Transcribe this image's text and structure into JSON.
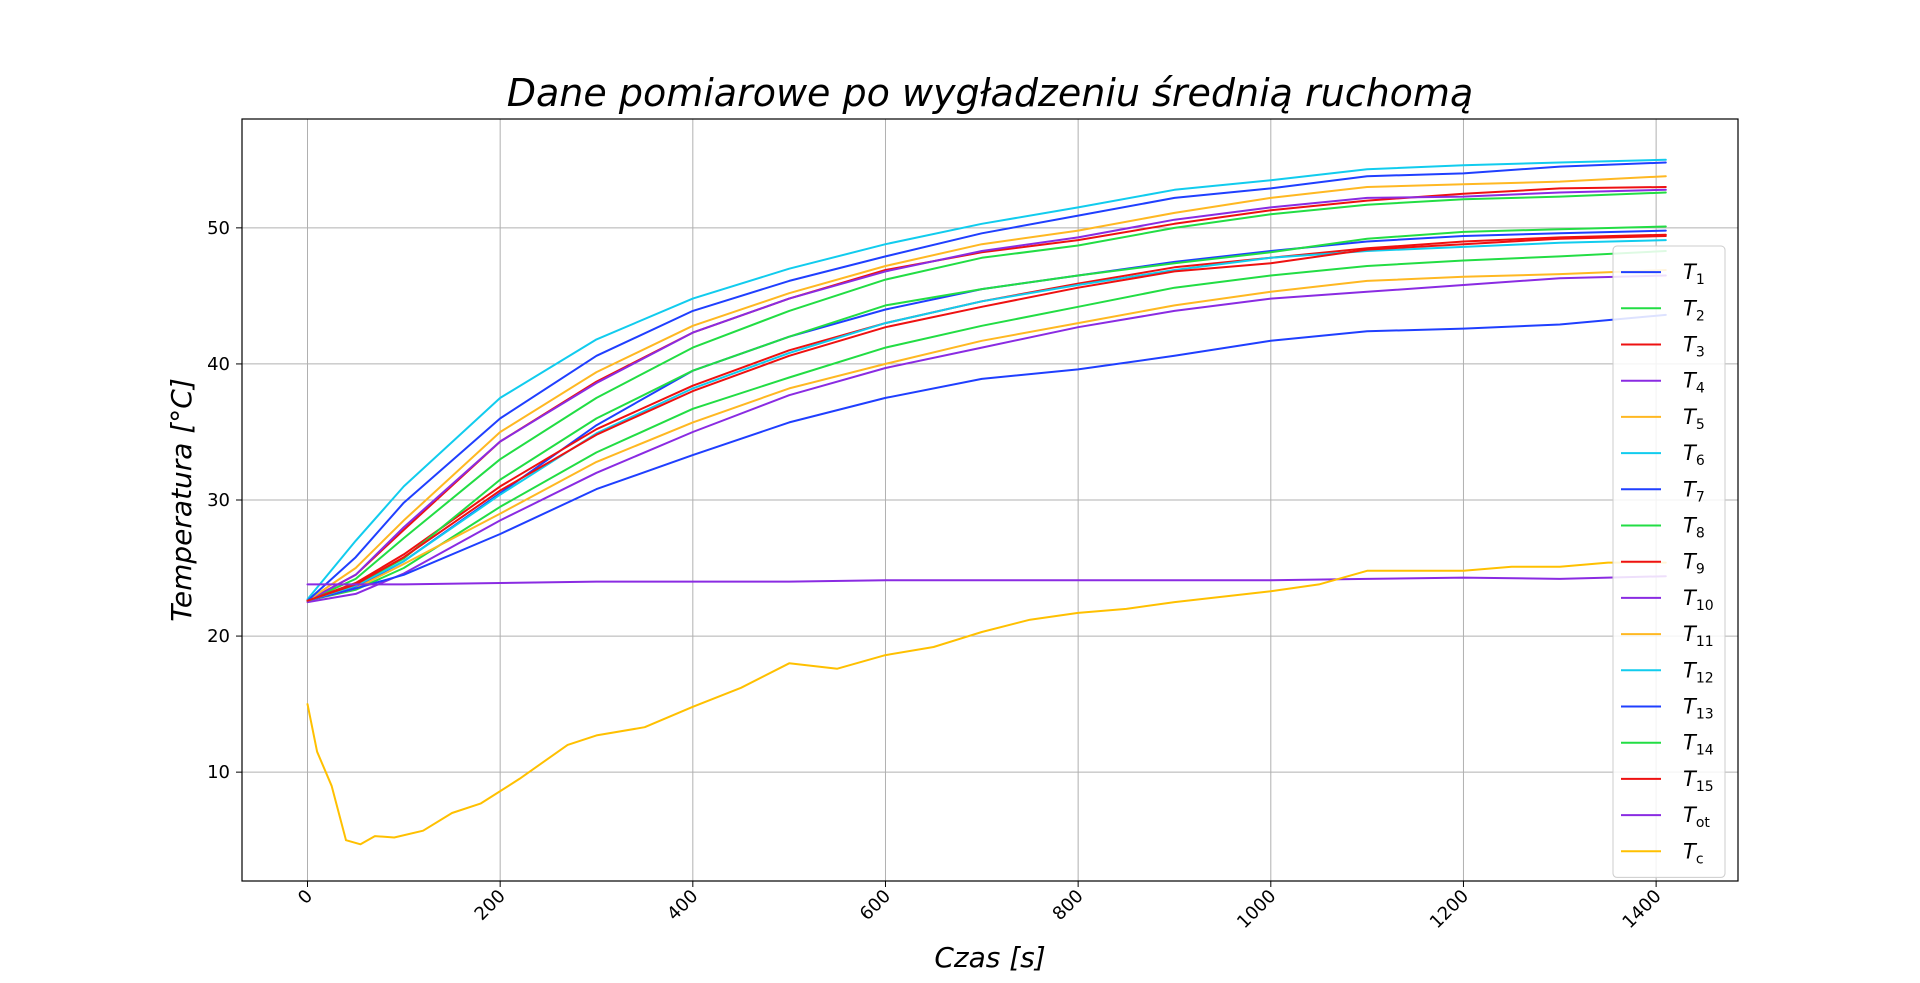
{
  "chart_data": {
    "type": "line",
    "title": "Dane pomiarowe po wygładzeniu średnią ruchomą",
    "xlabel": "Czas [s]",
    "ylabel": "Temperatura [°C]",
    "xlim": [
      -68,
      1485
    ],
    "ylim": [
      2,
      58
    ],
    "xticks": [
      0,
      200,
      400,
      600,
      800,
      1000,
      1200,
      1400
    ],
    "xtick_labels": [
      "0",
      "200",
      "400",
      "600",
      "800",
      "1000",
      "1200",
      "1400"
    ],
    "xtick_rotation": -45,
    "yticks": [
      10,
      20,
      30,
      40,
      50
    ],
    "ytick_labels": [
      "10",
      "20",
      "30",
      "40",
      "50"
    ],
    "grid": true,
    "legend_position": "right",
    "series": [
      {
        "name": "T",
        "sub": "1",
        "color": "#1f3fff",
        "x": [
          0,
          50,
          100,
          200,
          300,
          400,
          500,
          600,
          700,
          800,
          900,
          1000,
          1100,
          1200,
          1300,
          1410
        ],
        "y": [
          22.6,
          23.6,
          25.5,
          30.5,
          35.5,
          39.5,
          42.0,
          44.0,
          45.5,
          46.5,
          47.5,
          48.3,
          49.0,
          49.4,
          49.6,
          49.8
        ]
      },
      {
        "name": "T",
        "sub": "2",
        "color": "#22dd44",
        "x": [
          0,
          50,
          100,
          200,
          300,
          400,
          500,
          600,
          700,
          800,
          900,
          1000,
          1100,
          1200,
          1300,
          1410
        ],
        "y": [
          22.6,
          23.4,
          25.0,
          29.5,
          33.5,
          36.7,
          39.0,
          41.2,
          42.8,
          44.2,
          45.6,
          46.5,
          47.2,
          47.6,
          47.9,
          48.3
        ]
      },
      {
        "name": "T",
        "sub": "3",
        "color": "#ee1111",
        "x": [
          0,
          50,
          100,
          200,
          300,
          400,
          500,
          600,
          700,
          800,
          900,
          1000,
          1100,
          1200,
          1300,
          1410
        ],
        "y": [
          22.6,
          24.5,
          27.8,
          34.3,
          38.7,
          42.3,
          44.8,
          46.9,
          48.2,
          49.1,
          50.3,
          51.3,
          52.0,
          52.5,
          52.9,
          53.0
        ]
      },
      {
        "name": "T",
        "sub": "4",
        "color": "#8a2be2",
        "x": [
          0,
          50,
          100,
          200,
          300,
          400,
          500,
          600,
          700,
          800,
          900,
          1000,
          1100,
          1200,
          1300,
          1410
        ],
        "y": [
          22.5,
          23.1,
          24.6,
          28.5,
          32.0,
          35.0,
          37.7,
          39.7,
          41.2,
          42.7,
          43.9,
          44.8,
          45.3,
          45.8,
          46.3,
          46.5
        ]
      },
      {
        "name": "T",
        "sub": "5",
        "color": "#ffb822",
        "x": [
          0,
          50,
          100,
          200,
          300,
          400,
          500,
          600,
          700,
          800,
          900,
          1000,
          1100,
          1200,
          1300,
          1410
        ],
        "y": [
          22.6,
          23.5,
          25.3,
          29.0,
          32.8,
          35.7,
          38.2,
          40.0,
          41.7,
          43.0,
          44.3,
          45.3,
          46.1,
          46.4,
          46.6,
          46.9
        ]
      },
      {
        "name": "T",
        "sub": "6",
        "color": "#11ccee",
        "x": [
          0,
          50,
          100,
          200,
          300,
          400,
          500,
          600,
          700,
          800,
          900,
          1000,
          1100,
          1200,
          1300,
          1410
        ],
        "y": [
          22.7,
          27.0,
          31.0,
          37.5,
          41.8,
          44.8,
          47.0,
          48.8,
          50.3,
          51.5,
          52.8,
          53.5,
          54.3,
          54.6,
          54.8,
          55.0
        ]
      },
      {
        "name": "T",
        "sub": "7",
        "color": "#1f3fff",
        "x": [
          0,
          50,
          100,
          200,
          300,
          400,
          500,
          600,
          700,
          800,
          900,
          1000,
          1100,
          1200,
          1300,
          1410
        ],
        "y": [
          22.6,
          23.5,
          24.5,
          27.5,
          30.8,
          33.3,
          35.7,
          37.5,
          38.9,
          39.6,
          40.6,
          41.7,
          42.4,
          42.6,
          42.9,
          43.6
        ]
      },
      {
        "name": "T",
        "sub": "8",
        "color": "#22dd44",
        "x": [
          0,
          50,
          100,
          200,
          300,
          400,
          500,
          600,
          700,
          800,
          900,
          1000,
          1100,
          1200,
          1300,
          1410
        ],
        "y": [
          22.6,
          24.2,
          27.2,
          33.0,
          37.5,
          41.2,
          43.9,
          46.2,
          47.8,
          48.7,
          50.0,
          51.0,
          51.7,
          52.1,
          52.3,
          52.6
        ]
      },
      {
        "name": "T",
        "sub": "9",
        "color": "#ee1111",
        "x": [
          0,
          50,
          100,
          200,
          300,
          400,
          500,
          600,
          700,
          800,
          900,
          1000,
          1100,
          1200,
          1300,
          1410
        ],
        "y": [
          22.6,
          23.9,
          26.0,
          31.0,
          35.2,
          38.4,
          41.0,
          43.0,
          44.6,
          45.9,
          47.1,
          47.8,
          48.5,
          49.0,
          49.3,
          49.5
        ]
      },
      {
        "name": "T",
        "sub": "10",
        "color": "#8a2be2",
        "x": [
          0,
          50,
          100,
          200,
          300,
          400,
          500,
          600,
          700,
          800,
          900,
          1000,
          1100,
          1200,
          1300,
          1410
        ],
        "y": [
          22.6,
          24.5,
          28.0,
          34.3,
          38.6,
          42.3,
          44.8,
          46.8,
          48.3,
          49.3,
          50.6,
          51.5,
          52.2,
          52.3,
          52.6,
          52.8
        ]
      },
      {
        "name": "T",
        "sub": "11",
        "color": "#ffb822",
        "x": [
          0,
          50,
          100,
          200,
          300,
          400,
          500,
          600,
          700,
          800,
          900,
          1000,
          1100,
          1200,
          1300,
          1410
        ],
        "y": [
          22.6,
          25.0,
          28.5,
          35.0,
          39.4,
          42.8,
          45.2,
          47.2,
          48.8,
          49.8,
          51.1,
          52.2,
          53.0,
          53.2,
          53.4,
          53.8
        ]
      },
      {
        "name": "T",
        "sub": "12",
        "color": "#11ccee",
        "x": [
          0,
          50,
          100,
          200,
          300,
          400,
          500,
          600,
          700,
          800,
          900,
          1000,
          1100,
          1200,
          1300,
          1410
        ],
        "y": [
          22.6,
          23.7,
          25.5,
          30.4,
          34.9,
          38.2,
          40.8,
          43.0,
          44.6,
          45.8,
          46.9,
          47.8,
          48.3,
          48.6,
          48.9,
          49.1
        ]
      },
      {
        "name": "T",
        "sub": "13",
        "color": "#1f3fff",
        "x": [
          0,
          50,
          100,
          200,
          300,
          400,
          500,
          600,
          700,
          800,
          900,
          1000,
          1100,
          1200,
          1300,
          1410
        ],
        "y": [
          22.6,
          25.8,
          29.8,
          36.0,
          40.6,
          43.9,
          46.1,
          47.9,
          49.6,
          50.9,
          52.2,
          52.9,
          53.8,
          54.0,
          54.5,
          54.8
        ]
      },
      {
        "name": "T",
        "sub": "14",
        "color": "#22dd44",
        "x": [
          0,
          50,
          100,
          200,
          300,
          400,
          500,
          600,
          700,
          800,
          900,
          1000,
          1100,
          1200,
          1300,
          1410
        ],
        "y": [
          22.6,
          23.8,
          25.7,
          31.5,
          36.0,
          39.5,
          42.0,
          44.3,
          45.5,
          46.5,
          47.4,
          48.2,
          49.2,
          49.7,
          49.9,
          50.1
        ]
      },
      {
        "name": "T",
        "sub": "15",
        "color": "#ee1111",
        "x": [
          0,
          50,
          100,
          200,
          300,
          400,
          500,
          600,
          700,
          800,
          900,
          1000,
          1100,
          1200,
          1300,
          1410
        ],
        "y": [
          22.6,
          23.8,
          25.8,
          30.7,
          34.8,
          38.0,
          40.6,
          42.7,
          44.2,
          45.6,
          46.8,
          47.4,
          48.4,
          48.8,
          49.2,
          49.4
        ]
      },
      {
        "name": "T",
        "sub": "ot",
        "color": "#8a2be2",
        "x": [
          0,
          50,
          100,
          200,
          300,
          400,
          500,
          600,
          700,
          800,
          900,
          1000,
          1100,
          1200,
          1300,
          1410
        ],
        "y": [
          23.8,
          23.8,
          23.8,
          23.9,
          24.0,
          24.0,
          24.0,
          24.1,
          24.1,
          24.1,
          24.1,
          24.1,
          24.2,
          24.3,
          24.2,
          24.4
        ]
      },
      {
        "name": "T",
        "sub": "c",
        "color": "#ffc000",
        "x": [
          0,
          10,
          25,
          40,
          55,
          70,
          90,
          120,
          150,
          180,
          220,
          270,
          300,
          350,
          400,
          450,
          500,
          550,
          600,
          650,
          700,
          750,
          800,
          850,
          900,
          1000,
          1050,
          1100,
          1150,
          1200,
          1250,
          1300,
          1350,
          1410
        ],
        "y": [
          15.0,
          11.5,
          9.0,
          5.0,
          4.7,
          5.3,
          5.2,
          5.7,
          7.0,
          7.7,
          9.5,
          12.0,
          12.7,
          13.3,
          14.8,
          16.2,
          18.0,
          17.6,
          18.6,
          19.2,
          20.3,
          21.2,
          21.7,
          22.0,
          22.5,
          23.3,
          23.8,
          24.8,
          24.8,
          24.8,
          25.1,
          25.1,
          25.4,
          25.4
        ]
      }
    ]
  }
}
